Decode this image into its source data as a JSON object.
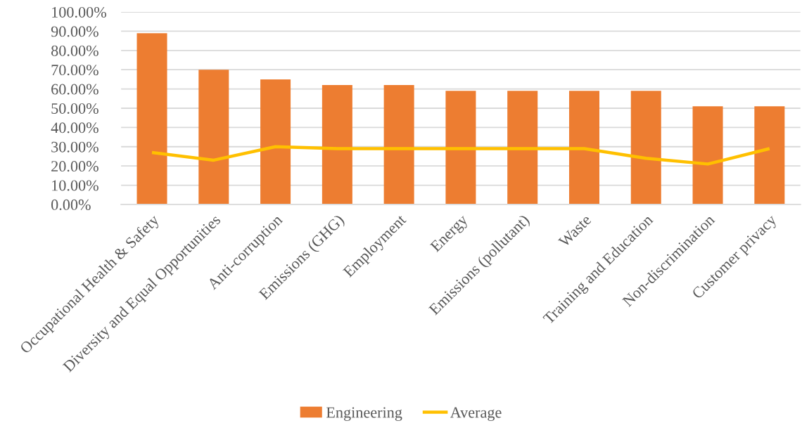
{
  "chart_data": {
    "type": "bar",
    "categories": [
      "Occupational Health & Safety",
      "Diversity and Equal Opportunities",
      "Anti-corruption",
      "Emissions (GHG)",
      "Employment",
      "Energy",
      "Emissions (pollutant)",
      "Waste",
      "Training and Education",
      "Non-discrimination",
      "Customer privacy"
    ],
    "series": [
      {
        "name": "Engineering",
        "color": "#ed7d31",
        "values": [
          89,
          70,
          65,
          62,
          62,
          59,
          59,
          59,
          59,
          51,
          51
        ]
      },
      {
        "name": "Average",
        "type": "line",
        "color": "#ffc000",
        "values": [
          27,
          23,
          30,
          29,
          29,
          29,
          29,
          29,
          24,
          21,
          29
        ]
      }
    ],
    "ylim": [
      0,
      100
    ],
    "yticks": [
      {
        "value": 0,
        "label": "0.00%"
      },
      {
        "value": 10,
        "label": "10.00%"
      },
      {
        "value": 20,
        "label": "20.00%"
      },
      {
        "value": 30,
        "label": "30.00%"
      },
      {
        "value": 40,
        "label": "40.00%"
      },
      {
        "value": 50,
        "label": "50.00%"
      },
      {
        "value": 60,
        "label": "60.00%"
      },
      {
        "value": 70,
        "label": "70.00%"
      },
      {
        "value": 80,
        "label": "80.00%"
      },
      {
        "value": 90,
        "label": "90.00%"
      },
      {
        "value": 100,
        "label": "100.00%"
      }
    ],
    "grid": "y",
    "legend": "bottom"
  }
}
